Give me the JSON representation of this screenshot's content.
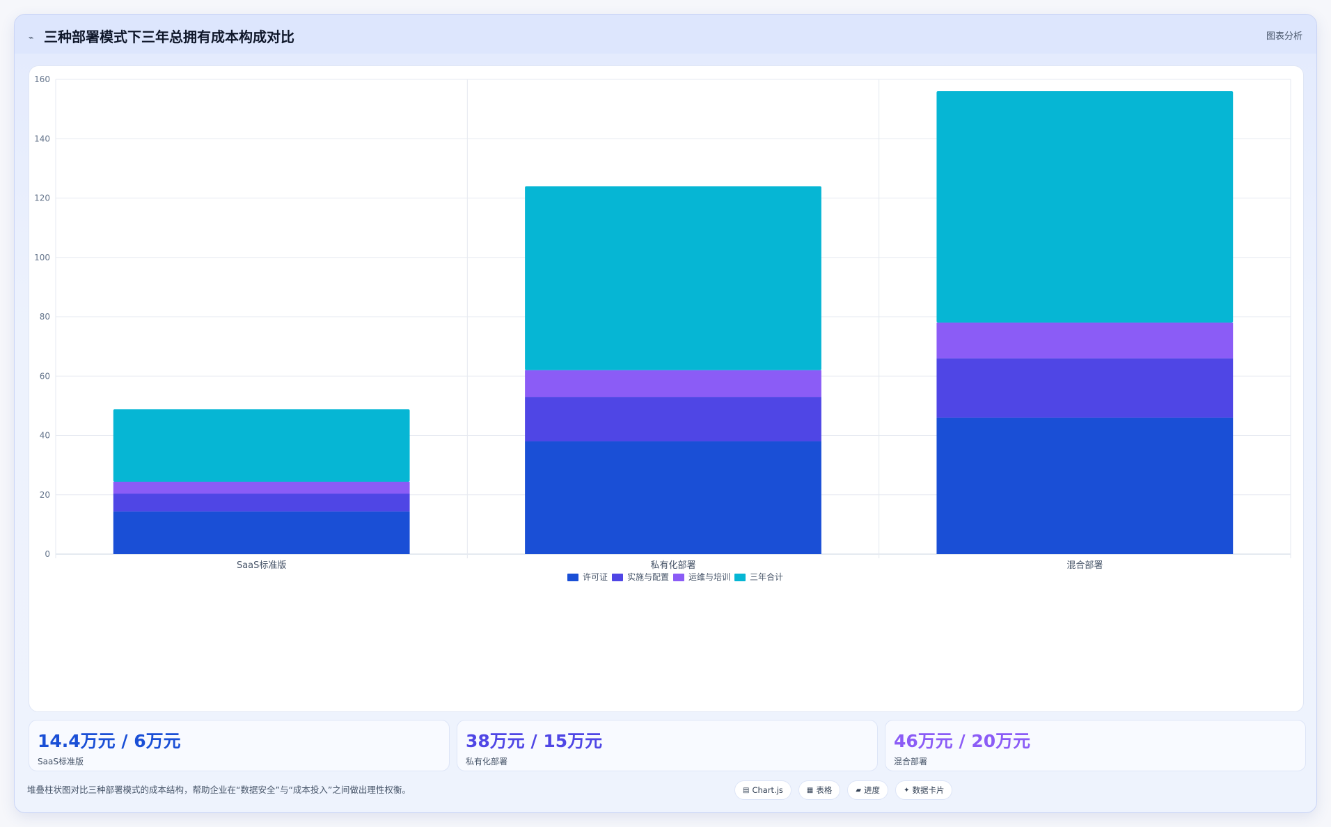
{
  "header": {
    "icon": "trend-icon",
    "title": "三种部署模式下三年总拥有成本构成对比",
    "link_label": "图表分析"
  },
  "colors": {
    "license": "#1a4fd6",
    "implementation": "#4f46e5",
    "ops": "#8b5cf6",
    "total": "#06b6d4",
    "stat_saas": "#1a4fd6",
    "stat_private": "#4f46e5",
    "stat_hybrid": "#8b5cf6"
  },
  "chart_data": {
    "type": "bar",
    "stacked": true,
    "categories": [
      "SaaS标准版",
      "私有化部署",
      "混合部署"
    ],
    "series": [
      {
        "name": "许可证",
        "values": [
          14.4,
          38,
          46
        ],
        "color": "#1a4fd6"
      },
      {
        "name": "实施与配置",
        "values": [
          6,
          15,
          20
        ],
        "color": "#4f46e5"
      },
      {
        "name": "运维与培训",
        "values": [
          4,
          9,
          12
        ],
        "color": "#8b5cf6"
      },
      {
        "name": "三年合计",
        "values": [
          24.4,
          62,
          78
        ],
        "color": "#06b6d4"
      }
    ],
    "ylim": [
      0,
      160
    ],
    "yticks": [
      0,
      20,
      40,
      60,
      80,
      100,
      120,
      140,
      160
    ],
    "grid": true,
    "legend_position": "bottom"
  },
  "stats": [
    {
      "value": "14.4万元 / 6万元",
      "label": "SaaS标准版",
      "color": "#1a4fd6"
    },
    {
      "value": "38万元 / 15万元",
      "label": "私有化部署",
      "color": "#4f46e5"
    },
    {
      "value": "46万元 / 20万元",
      "label": "混合部署",
      "color": "#8b5cf6"
    }
  ],
  "footnote": "堆叠柱状图对比三种部署模式的成本结构，帮助企业在“数据安全”与“成本投入”之间做出理性权衡。",
  "chips": [
    {
      "icon": "chart-icon",
      "glyph": "▤",
      "label": "Chart.js"
    },
    {
      "icon": "table-icon",
      "glyph": "▦",
      "label": "表格"
    },
    {
      "icon": "progress-icon",
      "glyph": "▰",
      "label": "进度"
    },
    {
      "icon": "card-icon",
      "glyph": "✦",
      "label": "数据卡片"
    }
  ]
}
